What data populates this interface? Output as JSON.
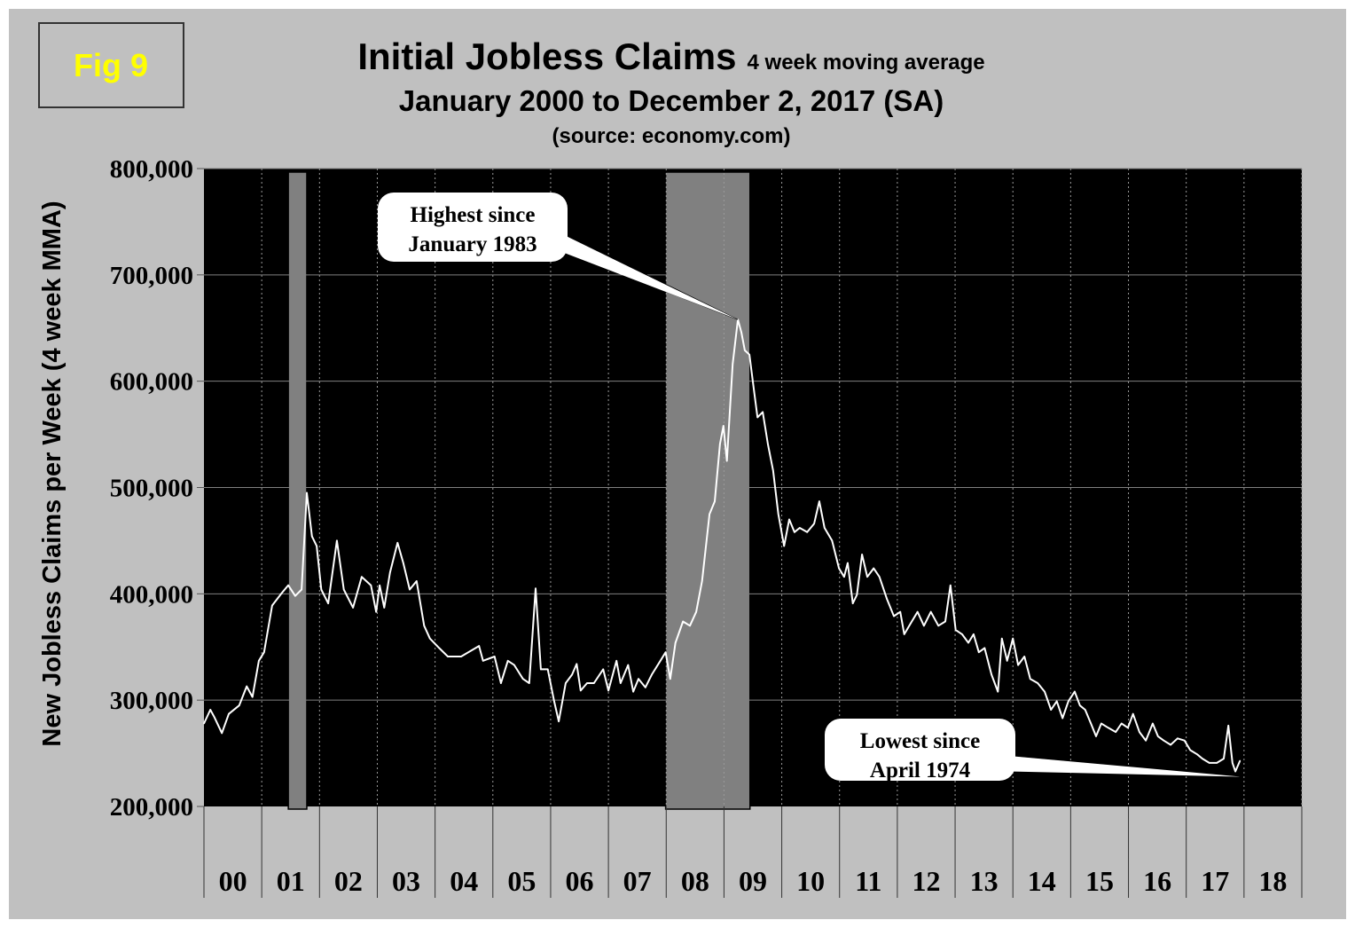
{
  "figure_label": "Fig 9",
  "colors": {
    "page_background": "#c0c0c0",
    "plot_background": "#000000",
    "line": "#ffffff",
    "recession_band": "#808080",
    "figure_label_text": "#ffff00",
    "callout_fill": "#ffffff"
  },
  "chart_data": {
    "type": "line",
    "title": "Initial Jobless Claims",
    "title_suffix": "4 week moving average",
    "subtitle": "January 2000 to December 2, 2017 (SA)",
    "source": "(source: economy.com)",
    "ylabel": "New Jobless Claims per Week (4 week MMA)",
    "xlabel": "",
    "ylim": [
      200000,
      800000
    ],
    "xlim": [
      2000,
      2019
    ],
    "y_ticks": [
      200000,
      300000,
      400000,
      500000,
      600000,
      700000,
      800000
    ],
    "y_tick_labels": [
      "200,000",
      "300,000",
      "400,000",
      "500,000",
      "600,000",
      "700,000",
      "800,000"
    ],
    "x_tick_labels": [
      "00",
      "01",
      "02",
      "03",
      "04",
      "05",
      "06",
      "07",
      "08",
      "09",
      "10",
      "11",
      "12",
      "13",
      "14",
      "15",
      "16",
      "17",
      "18"
    ],
    "grid": {
      "horizontal": "solid",
      "vertical": "dotted"
    },
    "shaded_periods": [
      {
        "label": "recession",
        "start": 2001.46,
        "end": 2001.78
      },
      {
        "label": "recession",
        "start": 2007.99,
        "end": 2009.45
      }
    ],
    "annotations": [
      {
        "lines": [
          "Highest since",
          "January 1983"
        ],
        "points_to": [
          2009.24,
          658000
        ]
      },
      {
        "lines": [
          "Lowest since",
          "April 1974"
        ],
        "points_to": [
          2017.93,
          228000
        ]
      }
    ],
    "series": [
      {
        "x": [
          2000.0,
          2000.11,
          2000.18,
          2000.31,
          2000.43,
          2000.61,
          2000.74,
          2000.84,
          2000.95,
          2001.04,
          2001.18,
          2001.35,
          2001.46,
          2001.58,
          2001.69,
          2001.78,
          2001.87,
          2001.95,
          2002.03,
          2002.15,
          2002.3,
          2002.42,
          2002.58,
          2002.73,
          2002.89,
          2002.98,
          2003.04,
          2003.12,
          2003.22,
          2003.35,
          2003.45,
          2003.56,
          2003.68,
          2003.81,
          2003.91,
          2004.07,
          2004.22,
          2004.45,
          2004.76,
          2004.83,
          2005.03,
          2005.14,
          2005.26,
          2005.37,
          2005.52,
          2005.63,
          2005.74,
          2005.83,
          2005.95,
          2006.06,
          2006.14,
          2006.26,
          2006.37,
          2006.45,
          2006.52,
          2006.63,
          2006.75,
          2006.91,
          2007.0,
          2007.14,
          2007.21,
          2007.34,
          2007.43,
          2007.52,
          2007.64,
          2007.75,
          2007.9,
          2007.99,
          2008.07,
          2008.16,
          2008.29,
          2008.41,
          2008.52,
          2008.62,
          2008.75,
          2008.84,
          2008.93,
          2008.99,
          2009.05,
          2009.15,
          2009.24,
          2009.3,
          2009.36,
          2009.44,
          2009.52,
          2009.58,
          2009.67,
          2009.76,
          2009.85,
          2009.94,
          2010.04,
          2010.13,
          2010.22,
          2010.31,
          2010.44,
          2010.56,
          2010.65,
          2010.74,
          2010.87,
          2010.99,
          2011.08,
          2011.14,
          2011.23,
          2011.3,
          2011.39,
          2011.48,
          2011.59,
          2011.69,
          2011.82,
          2011.94,
          2012.05,
          2012.12,
          2012.25,
          2012.35,
          2012.46,
          2012.58,
          2012.71,
          2012.83,
          2012.92,
          2013.01,
          2013.12,
          2013.23,
          2013.32,
          2013.41,
          2013.51,
          2013.63,
          2013.74,
          2013.81,
          2013.9,
          2014.0,
          2014.09,
          2014.2,
          2014.3,
          2014.43,
          2014.55,
          2014.66,
          2014.76,
          2014.86,
          2014.96,
          2015.07,
          2015.16,
          2015.25,
          2015.35,
          2015.44,
          2015.53,
          2015.65,
          2015.78,
          2015.88,
          2015.99,
          2016.08,
          2016.19,
          2016.3,
          2016.42,
          2016.51,
          2016.61,
          2016.73,
          2016.85,
          2016.97,
          2017.07,
          2017.19,
          2017.28,
          2017.4,
          2017.53,
          2017.65,
          2017.73,
          2017.8,
          2017.85,
          2017.93
        ],
        "y": [
          278000,
          291000,
          284000,
          269000,
          287000,
          295000,
          313000,
          303000,
          337000,
          345000,
          389000,
          401000,
          408000,
          398000,
          404000,
          495000,
          454000,
          445000,
          404000,
          391000,
          450000,
          404000,
          387000,
          416000,
          408000,
          383000,
          408000,
          387000,
          420000,
          448000,
          429000,
          404000,
          412000,
          370000,
          358000,
          349000,
          341000,
          341000,
          351000,
          337000,
          341000,
          316000,
          337000,
          333000,
          320000,
          316000,
          405000,
          329000,
          329000,
          299000,
          280000,
          316000,
          324000,
          334000,
          309000,
          316000,
          316000,
          329000,
          309000,
          337000,
          316000,
          333000,
          308000,
          320000,
          312000,
          324000,
          337000,
          345000,
          320000,
          354000,
          374000,
          370000,
          383000,
          412000,
          475000,
          487000,
          541000,
          558000,
          525000,
          616000,
          658000,
          646000,
          629000,
          625000,
          591000,
          566000,
          571000,
          541000,
          516000,
          475000,
          445000,
          470000,
          458000,
          462000,
          458000,
          466000,
          487000,
          462000,
          450000,
          424000,
          416000,
          429000,
          391000,
          399000,
          437000,
          416000,
          424000,
          416000,
          395000,
          379000,
          383000,
          362000,
          374000,
          383000,
          370000,
          383000,
          370000,
          374000,
          408000,
          366000,
          362000,
          354000,
          362000,
          345000,
          349000,
          324000,
          308000,
          358000,
          337000,
          358000,
          333000,
          341000,
          320000,
          316000,
          308000,
          291000,
          299000,
          283000,
          299000,
          308000,
          295000,
          291000,
          278000,
          266000,
          278000,
          274000,
          270000,
          278000,
          274000,
          287000,
          270000,
          262000,
          278000,
          266000,
          262000,
          258000,
          264000,
          262000,
          253000,
          249000,
          245000,
          241000,
          241000,
          245000,
          276000,
          241000,
          233000,
          243000
        ]
      }
    ]
  }
}
